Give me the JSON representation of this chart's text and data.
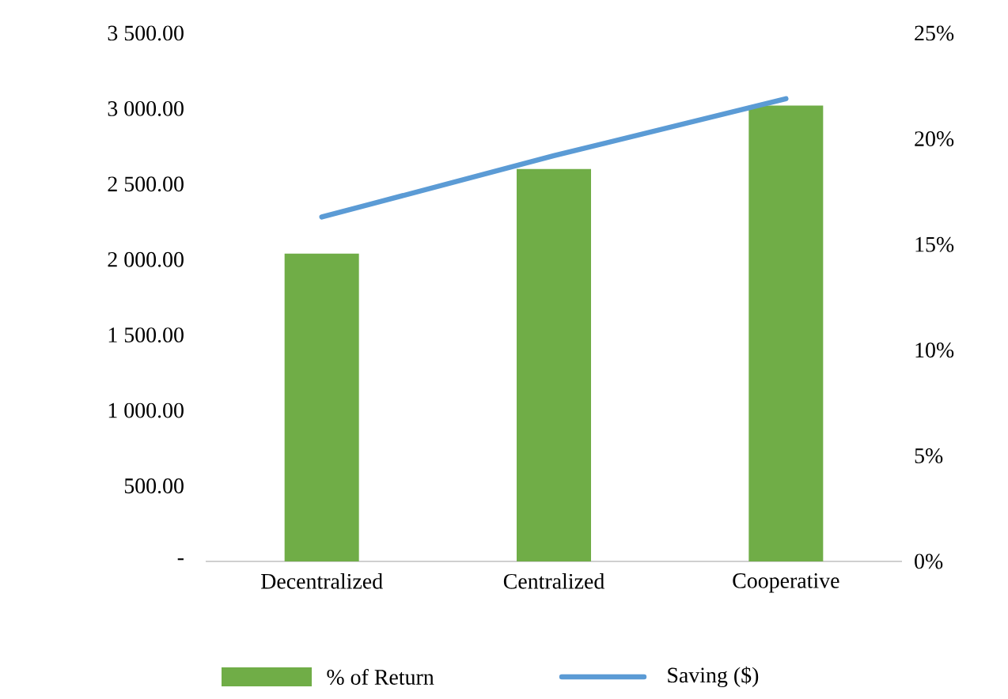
{
  "chart_data": {
    "type": "bar",
    "categories": [
      "Decentralized",
      "Centralized",
      "Cooperative"
    ],
    "series": [
      {
        "name": "% of Return",
        "color": "#70ad47",
        "values": [
          2040,
          2600,
          3020
        ]
      },
      {
        "name": "Saving ($)",
        "type": "line",
        "axis": "y2",
        "color": "#5b9bd5",
        "values": [
          16.3,
          19.2,
          21.9
        ]
      }
    ],
    "ylim": [
      0,
      3500
    ],
    "yticks": [
      {
        "value": 0,
        "label": "-"
      },
      {
        "value": 500,
        "label": "500.00"
      },
      {
        "value": 1000,
        "label": "1 000.00"
      },
      {
        "value": 1500,
        "label": "1 500.00"
      },
      {
        "value": 2000,
        "label": "2 000.00"
      },
      {
        "value": 2500,
        "label": "2 500.00"
      },
      {
        "value": 3000,
        "label": "3 000.00"
      },
      {
        "value": 3500,
        "label": "3 500.00"
      }
    ],
    "y2lim": [
      0,
      25
    ],
    "y2ticks": [
      {
        "value": 0,
        "label": "0%"
      },
      {
        "value": 5,
        "label": "5%"
      },
      {
        "value": 10,
        "label": "10%"
      },
      {
        "value": 15,
        "label": "15%"
      },
      {
        "value": 20,
        "label": "20%"
      },
      {
        "value": 25,
        "label": "25%"
      }
    ],
    "grid": false,
    "legend": "bottom"
  }
}
